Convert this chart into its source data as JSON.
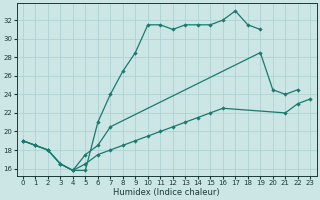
{
  "xlabel": "Humidex (Indice chaleur)",
  "x_ticks": [
    0,
    1,
    2,
    3,
    4,
    5,
    6,
    7,
    8,
    9,
    10,
    11,
    12,
    13,
    14,
    15,
    16,
    17,
    18,
    19,
    20,
    21,
    22,
    23
  ],
  "y_ticks": [
    16,
    18,
    20,
    22,
    24,
    26,
    28,
    30,
    32
  ],
  "xlim": [
    -0.5,
    23.5
  ],
  "ylim": [
    15.2,
    33.8
  ],
  "line_color": "#1a7a6e",
  "bg_color": "#cce5e5",
  "grid_color": "#aacfcf",
  "lines": [
    {
      "x": [
        0,
        1,
        2,
        3,
        4,
        5,
        6,
        7,
        8,
        9,
        10,
        11,
        12,
        13,
        14,
        15,
        16,
        17,
        18,
        19
      ],
      "y": [
        19,
        18.5,
        18,
        16.5,
        15.8,
        15.8,
        21,
        24,
        26.5,
        28.5,
        31.5,
        31.5,
        31.0,
        31.5,
        31.5,
        31.5,
        32.0,
        33.0,
        31.5,
        31.0
      ]
    },
    {
      "x": [
        0,
        1,
        2,
        3,
        4,
        5,
        6,
        7,
        19,
        20,
        21,
        22,
        23
      ],
      "y": [
        19,
        18.5,
        18,
        16.5,
        15.8,
        17.5,
        18.5,
        20.5,
        28.5,
        24.5,
        24.0,
        24.5,
        null
      ]
    },
    {
      "x": [
        0,
        1,
        2,
        3,
        4,
        5,
        6,
        7,
        8,
        9,
        10,
        11,
        12,
        13,
        14,
        15,
        16,
        21,
        22,
        23
      ],
      "y": [
        19,
        18.5,
        18,
        16.5,
        15.8,
        16.5,
        17.5,
        18.0,
        18.5,
        19.0,
        19.5,
        20.0,
        20.5,
        21.0,
        21.5,
        22.0,
        22.5,
        22.0,
        23.0,
        23.5
      ]
    }
  ]
}
